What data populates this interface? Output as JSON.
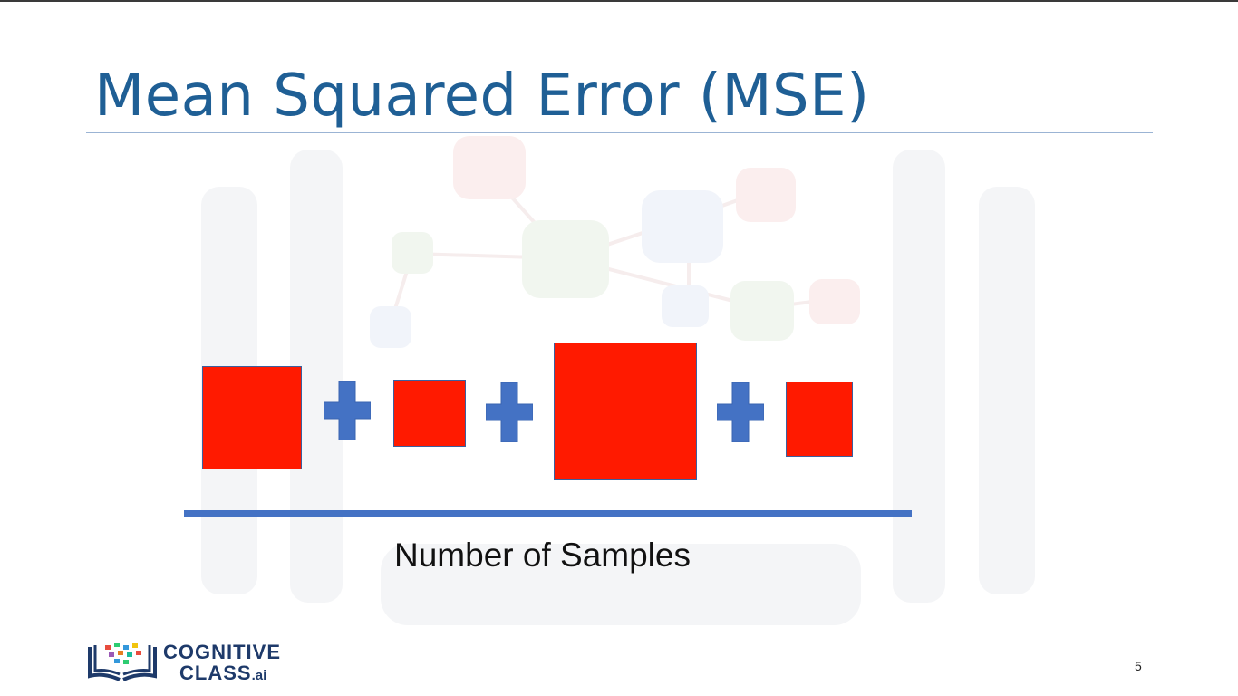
{
  "slide": {
    "title": "Mean Squared Error (MSE)",
    "denominator_label": "Number of Samples",
    "page_number": "5"
  },
  "logo": {
    "line1": "COGNITIVE",
    "line2": "CLASS",
    "suffix": ".ai"
  },
  "colors": {
    "title": "#1f5f95",
    "square_fill": "#ff1a00",
    "plus_sign": "#4472c4",
    "fraction_bar": "#4472c4"
  }
}
